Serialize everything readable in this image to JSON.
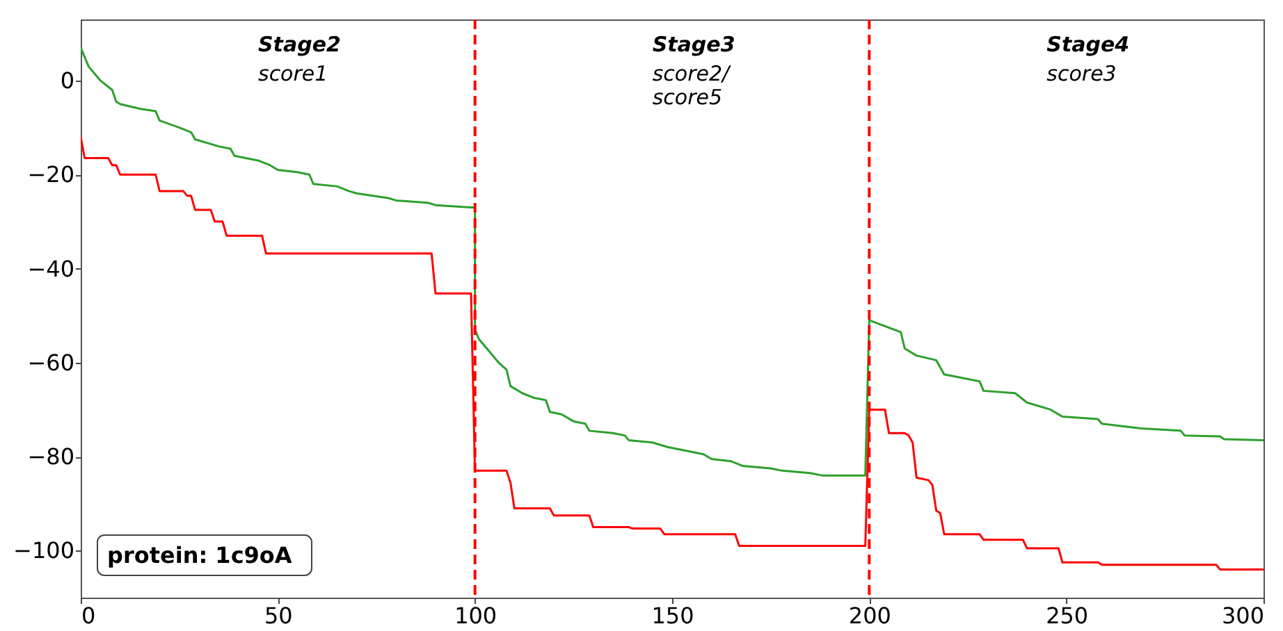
{
  "chart_data": {
    "type": "line",
    "xlim": [
      0,
      300
    ],
    "xticks": [
      0,
      50,
      100,
      150,
      200,
      250,
      300
    ],
    "ylim": [
      -110,
      13
    ],
    "yticks": [
      -100,
      -80,
      -60,
      -40,
      -20,
      0
    ],
    "grid": false,
    "marker": "none",
    "line_style": "solid",
    "ref_lines": [
      {
        "axis": "x",
        "value": 100,
        "color": "#ff0000",
        "line_style": "dashed"
      },
      {
        "axis": "x",
        "value": 200,
        "color": "#ff0000",
        "line_style": "dashed"
      }
    ],
    "annotations": [
      "Stage2",
      "score1",
      "Stage3",
      "score2/\nscore5",
      "Stage4",
      "score3",
      "protein: 1c9oA"
    ],
    "series": [
      {
        "color": "#2ca02c",
        "x": [
          0,
          2,
          5,
          8,
          9,
          10,
          15,
          19,
          20,
          25,
          28,
          29,
          35,
          38,
          39,
          45,
          48,
          50,
          55,
          58,
          59,
          65,
          68,
          70,
          78,
          80,
          88,
          90,
          99,
          100,
          100,
          101,
          103,
          106,
          108,
          109,
          112,
          115,
          118,
          119,
          122,
          125,
          128,
          129,
          135,
          138,
          139,
          145,
          149,
          155,
          158,
          160,
          165,
          168,
          175,
          178,
          185,
          188,
          199,
          200,
          208,
          209,
          212,
          217,
          219,
          228,
          229,
          237,
          240,
          246,
          249,
          258,
          259,
          269,
          279,
          280,
          289,
          290,
          300
        ],
        "values": [
          7,
          3,
          0,
          -2,
          -4.5,
          -5,
          -6,
          -6.5,
          -8.5,
          -10,
          -11,
          -12.5,
          -14,
          -14.5,
          -16,
          -17,
          -18,
          -19,
          -19.5,
          -20,
          -22,
          -22.5,
          -23.5,
          -24,
          -25,
          -25.5,
          -26,
          -26.5,
          -27,
          -27,
          -53,
          -55,
          -57,
          -60,
          -61.5,
          -65,
          -66.5,
          -67.5,
          -68,
          -70.5,
          -71,
          -72.5,
          -73,
          -74.5,
          -75,
          -75.5,
          -76.5,
          -77,
          -78,
          -79,
          -79.5,
          -80.5,
          -81,
          -82,
          -82.5,
          -83,
          -83.5,
          -84,
          -84,
          -51,
          -53.5,
          -57,
          -58.5,
          -59.5,
          -62.5,
          -64,
          -66,
          -66.5,
          -68.5,
          -70,
          -71.5,
          -72,
          -73,
          -74,
          -74.5,
          -75.5,
          -75.7,
          -76.3,
          -76.5
        ]
      },
      {
        "color": "#ff0000",
        "x": [
          0,
          1,
          7,
          8,
          9,
          10,
          19,
          20,
          26,
          27,
          28,
          29,
          33,
          34,
          36,
          37,
          46,
          47,
          89,
          90,
          99,
          100,
          108,
          109,
          110,
          119,
          120,
          129,
          130,
          139,
          140,
          147,
          148,
          166,
          167,
          199,
          200,
          204,
          205,
          209,
          210,
          211,
          212,
          215,
          216,
          217,
          218,
          219,
          228,
          229,
          239,
          240,
          248,
          249,
          258,
          259,
          288,
          289,
          300
        ],
        "values": [
          -12,
          -16.5,
          -16.5,
          -18,
          -18,
          -20,
          -20,
          -23.5,
          -23.5,
          -24.5,
          -24.5,
          -27.5,
          -27.5,
          -30,
          -30,
          -33,
          -33,
          -36.8,
          -36.8,
          -45.3,
          -45.3,
          -83,
          -83,
          -85.5,
          -91,
          -91,
          -92.5,
          -92.5,
          -95,
          -95,
          -95.3,
          -95.3,
          -96.5,
          -96.5,
          -99,
          -99,
          -70,
          -70,
          -75,
          -75,
          -75.5,
          -77,
          -84.5,
          -85,
          -86,
          -91.5,
          -92,
          -96.5,
          -96.5,
          -97.7,
          -97.7,
          -99.5,
          -99.5,
          -102.5,
          -102.5,
          -103,
          -103,
          -104,
          -104
        ]
      }
    ]
  }
}
